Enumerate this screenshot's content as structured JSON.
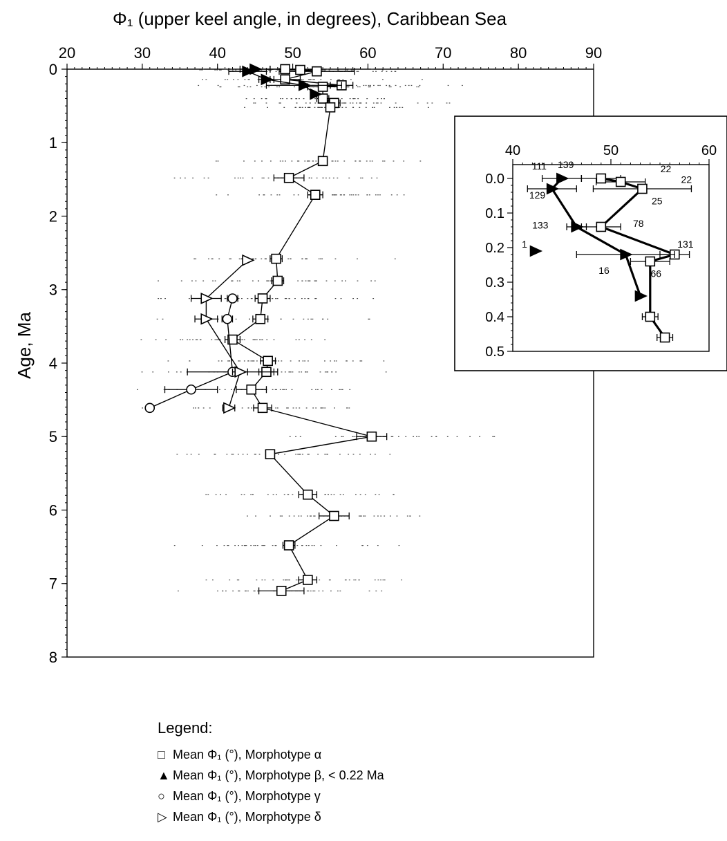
{
  "chart_data": [
    {
      "type": "scatter",
      "title": "Φ₁ (upper keel angle, in degrees), Caribbean Sea",
      "ylabel": "Age, Ma",
      "xlim": [
        20,
        90
      ],
      "ylim": [
        0,
        8
      ],
      "x_axis_position": "top",
      "y_axis_inverted": true,
      "x_ticks": [
        20,
        30,
        40,
        50,
        60,
        70,
        80,
        90
      ],
      "y_ticks": [
        0,
        1,
        2,
        3,
        4,
        5,
        6,
        7,
        8
      ],
      "grid": false,
      "series": [
        {
          "name": "Mean Φ₁ (°), Morphotype α",
          "marker": "square",
          "connected": true,
          "points": [
            {
              "y": 0.0,
              "x": 49.0,
              "err": 2.0
            },
            {
              "y": 0.01,
              "x": 51.0,
              "err": 2.5
            },
            {
              "y": 0.03,
              "x": 53.2,
              "err": 5.0
            },
            {
              "y": 0.14,
              "x": 49.0,
              "err": 2.0
            },
            {
              "y": 0.22,
              "x": 56.5,
              "err": 1.5
            },
            {
              "y": 0.24,
              "x": 54.0,
              "err": 2.0
            },
            {
              "y": 0.4,
              "x": 54.0,
              "err": 0.8
            },
            {
              "y": 0.46,
              "x": 55.5,
              "err": 0.8
            },
            {
              "y": 0.52,
              "x": 55.0,
              "err": 0.5
            },
            {
              "y": 1.25,
              "x": 54.0,
              "err": 0.3
            },
            {
              "y": 1.48,
              "x": 49.5,
              "err": 2.0
            },
            {
              "y": 1.71,
              "x": 53.0,
              "err": 1.0
            },
            {
              "y": 2.58,
              "x": 47.8,
              "err": 0.8
            },
            {
              "y": 2.88,
              "x": 48.0,
              "err": 0.8
            },
            {
              "y": 3.12,
              "x": 46.0,
              "err": 1.0
            },
            {
              "y": 3.4,
              "x": 45.7,
              "err": 1.0
            },
            {
              "y": 3.68,
              "x": 42.0,
              "err": 1.0
            },
            {
              "y": 3.97,
              "x": 46.7,
              "err": 1.0
            },
            {
              "y": 4.12,
              "x": 46.5,
              "err": 1.0
            },
            {
              "y": 4.36,
              "x": 44.5,
              "err": 2.0
            },
            {
              "y": 4.61,
              "x": 46.0,
              "err": 1.2
            },
            {
              "y": 5.0,
              "x": 60.5,
              "err": 2.0
            },
            {
              "y": 5.24,
              "x": 47.0,
              "err": 0.5
            },
            {
              "y": 5.79,
              "x": 52.0,
              "err": 1.2
            },
            {
              "y": 6.08,
              "x": 55.5,
              "err": 2.0
            },
            {
              "y": 6.48,
              "x": 49.5,
              "err": 0.8
            },
            {
              "y": 6.95,
              "x": 52.0,
              "err": 1.2
            },
            {
              "y": 7.1,
              "x": 48.5,
              "err": 3.0
            }
          ]
        },
        {
          "name": "Mean Φ₁ (°), Morphotype β, < 0.22 Ma",
          "marker": "triangle-right-filled",
          "connected": true,
          "points": [
            {
              "y": 0.0,
              "x": 45.0,
              "err": 2.0
            },
            {
              "y": 0.03,
              "x": 44.0,
              "err": 2.5
            },
            {
              "y": 0.14,
              "x": 46.5,
              "err": 1.0
            },
            {
              "y": 0.22,
              "x": 51.5,
              "err": 5.0
            },
            {
              "y": 0.34,
              "x": 53.0,
              "err": 0
            }
          ]
        },
        {
          "name": "Mean Φ₁ (°), Morphotype γ",
          "marker": "circle",
          "connected": true,
          "points": [
            {
              "y": 3.12,
              "x": 42.0,
              "err": 0.7
            },
            {
              "y": 3.4,
              "x": 41.3,
              "err": 0.7
            },
            {
              "y": 4.12,
              "x": 42.0,
              "err": 6.0
            },
            {
              "y": 4.36,
              "x": 36.5,
              "err": 3.5
            },
            {
              "y": 4.61,
              "x": 31.0,
              "err": 0
            }
          ]
        },
        {
          "name": "Mean Φ₁ (°), Morphotype δ",
          "marker": "triangle-right",
          "connected": true,
          "points": [
            {
              "y": 2.6,
              "x": 44.0,
              "err": 0
            },
            {
              "y": 3.12,
              "x": 38.5,
              "err": 2.0
            },
            {
              "y": 3.4,
              "x": 38.5,
              "err": 1.5
            },
            {
              "y": 4.12,
              "x": 43.0,
              "err": 1.0
            },
            {
              "y": 4.61,
              "x": 41.5,
              "err": 0.8
            }
          ]
        }
      ]
    },
    {
      "type": "scatter",
      "title": "",
      "xlim": [
        40,
        60
      ],
      "ylim": [
        -0.04,
        0.5
      ],
      "x_axis_position": "top",
      "y_axis_inverted": true,
      "x_ticks": [
        40,
        50,
        60
      ],
      "y_ticks": [
        0.0,
        0.1,
        0.2,
        0.3,
        0.4,
        0.5
      ],
      "y_tick_labels": [
        "0.0",
        "0.1",
        "0.2",
        "0.3",
        "0.4",
        "0.5"
      ],
      "annotations": [
        {
          "text": "111",
          "x": 42.7,
          "y": -0.026
        },
        {
          "text": "139",
          "x": 45.4,
          "y": -0.03
        },
        {
          "text": "22",
          "x": 55.6,
          "y": -0.018
        },
        {
          "text": "22",
          "x": 57.7,
          "y": 0.013
        },
        {
          "text": "129",
          "x": 42.5,
          "y": 0.058
        },
        {
          "text": "25",
          "x": 54.7,
          "y": 0.075
        },
        {
          "text": "133",
          "x": 42.8,
          "y": 0.145
        },
        {
          "text": "78",
          "x": 52.8,
          "y": 0.14
        },
        {
          "text": "131",
          "x": 57.6,
          "y": 0.2
        },
        {
          "text": "1",
          "x": 41.2,
          "y": 0.2
        },
        {
          "text": "16",
          "x": 49.3,
          "y": 0.276
        },
        {
          "text": "66",
          "x": 54.6,
          "y": 0.285
        }
      ]
    }
  ],
  "legend": {
    "title": "Legend:",
    "items": [
      {
        "symbol": "□",
        "label": "Mean Φ₁ (°), Morphotype α"
      },
      {
        "symbol": "▲",
        "label": "Mean Φ₁ (°), Morphotype β, < 0.22 Ma"
      },
      {
        "symbol": "○",
        "label": "Mean Φ₁ (°), Morphotype γ"
      },
      {
        "symbol": "▷",
        "label": "Mean Φ₁ (°), Morphotype δ"
      }
    ]
  }
}
